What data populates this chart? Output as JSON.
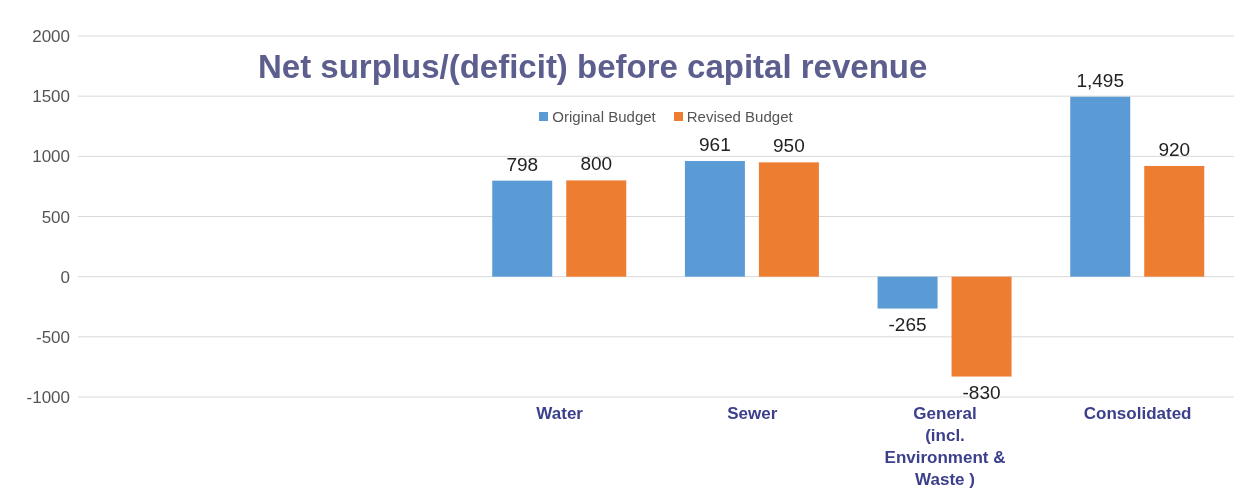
{
  "chart_data": {
    "type": "bar",
    "title": "Net surplus/(deficit) before capital revenue",
    "categories": [
      null,
      null,
      "Water",
      "Sewer",
      "General (incl. Environment & Waste )",
      "Consolidated"
    ],
    "series": [
      {
        "name": "Original Budget",
        "color": "#5b9bd5",
        "values": [
          null,
          null,
          798,
          961,
          -265,
          1495
        ],
        "value_labels": [
          null,
          null,
          "798",
          "961",
          "-265",
          "1,495"
        ]
      },
      {
        "name": "Revised Budget",
        "color": "#ed7d31",
        "values": [
          null,
          null,
          800,
          950,
          -830,
          920
        ],
        "value_labels": [
          null,
          null,
          "800",
          "950",
          "-830",
          "920"
        ]
      }
    ],
    "ylim": [
      -1000,
      2000
    ],
    "yticks": [
      -1000,
      -500,
      0,
      500,
      1000,
      1500,
      2000
    ],
    "grid": "y",
    "legend": "top"
  }
}
